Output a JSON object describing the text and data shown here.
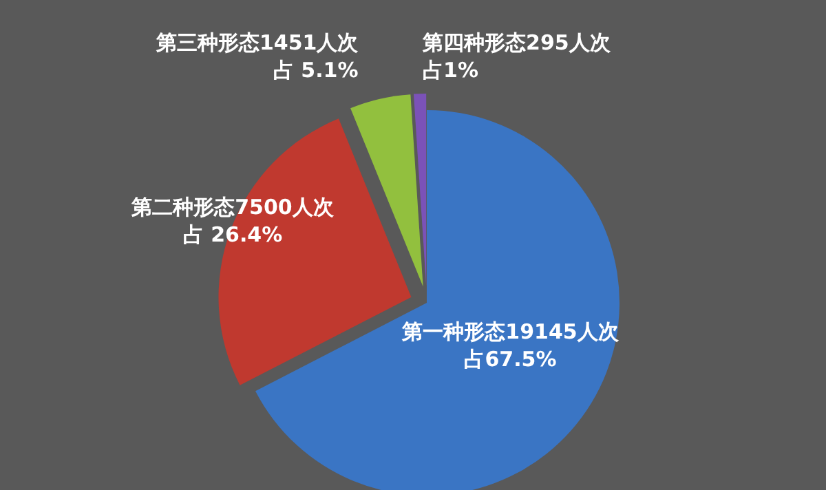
{
  "chart_data": {
    "type": "pie",
    "categories": [
      "第一种形态",
      "第二种形态",
      "第三种形态",
      "第四种形态"
    ],
    "values": [
      19145,
      7500,
      1451,
      295
    ],
    "value_labels": [
      "19145人次占67.5%",
      "7500人次占 26.4%",
      "1451人次占 5.1%",
      "295人次占1%"
    ],
    "colors": [
      "#3a75c4",
      "#c0392f",
      "#92c03e",
      "#7b52b8"
    ],
    "legend": false
  }
}
